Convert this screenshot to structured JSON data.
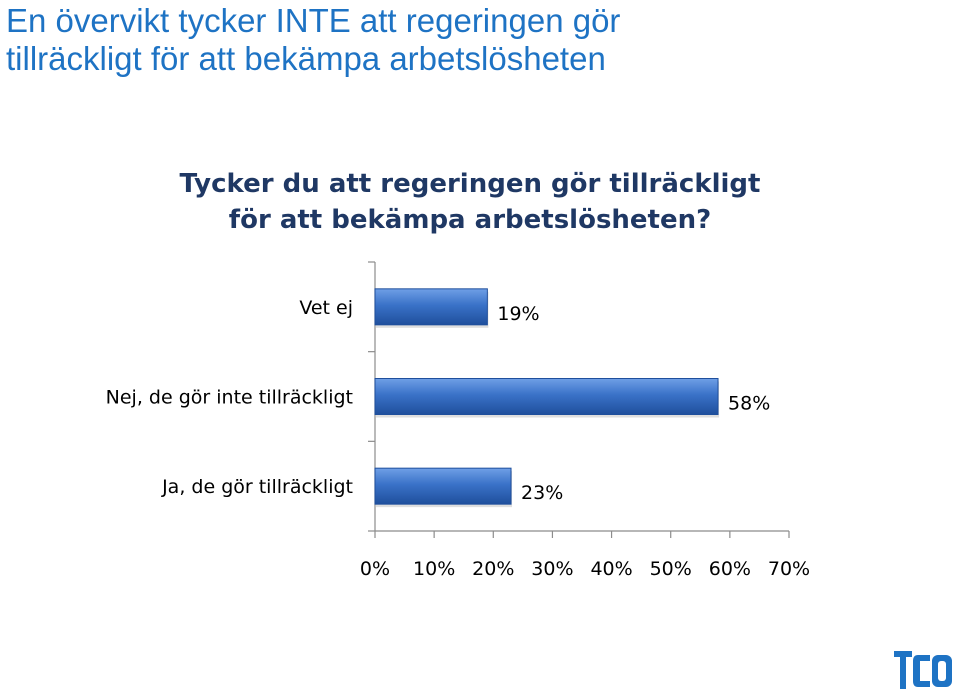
{
  "slide": {
    "headline_lines": [
      "En övervikt tycker INTE att regeringen gör",
      "tillräckligt för att bekämpa arbetslösheten"
    ],
    "logo_text": "TCO"
  },
  "chart_data": {
    "type": "bar",
    "orientation": "horizontal",
    "title_lines": [
      "Tycker du att regeringen gör tillräckligt",
      "för att bekämpa arbetslösheten?"
    ],
    "categories": [
      "Vet ej",
      "Nej, de gör inte tillräckligt",
      "Ja, de gör tillräckligt"
    ],
    "values": [
      19,
      58,
      23
    ],
    "value_labels": [
      "19%",
      "58%",
      "23%"
    ],
    "xlim": [
      0,
      70
    ],
    "x_ticks": [
      0,
      10,
      20,
      30,
      40,
      50,
      60,
      70
    ],
    "x_tick_labels": [
      "0%",
      "10%",
      "20%",
      "30%",
      "40%",
      "50%",
      "60%",
      "70%"
    ],
    "grid": false,
    "legend": "none",
    "bar_color": "#3a72c8",
    "bar_color_light": "#6f9fe6",
    "bar_color_dark": "#1f4f9c"
  }
}
